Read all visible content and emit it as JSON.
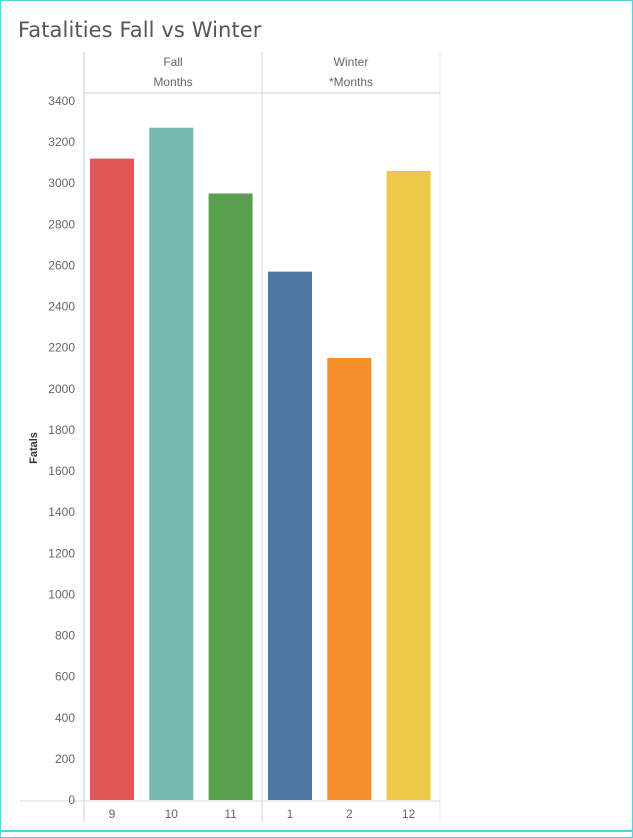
{
  "chart_data": {
    "type": "bar",
    "title": "Fatalities Fall vs Winter",
    "ylabel": "Fatals",
    "xlabel": "",
    "ylim": [
      0,
      3400
    ],
    "y_ticks": [
      0,
      200,
      400,
      600,
      800,
      1000,
      1200,
      1400,
      1600,
      1800,
      2000,
      2200,
      2400,
      2600,
      2800,
      3000,
      3200,
      3400
    ],
    "grid": false,
    "groups": [
      {
        "header": [
          "Fall",
          "Months"
        ],
        "categories": [
          "9",
          "10",
          "11"
        ],
        "values": [
          3120,
          3270,
          2950
        ],
        "colors": [
          "#e15759",
          "#76b7b2",
          "#59a14f"
        ]
      },
      {
        "header": [
          "Winter",
          "*Months"
        ],
        "categories": [
          "1",
          "2",
          "12"
        ],
        "values": [
          2570,
          2150,
          3060
        ],
        "colors": [
          "#4e79a7",
          "#f28e2b",
          "#edc948"
        ]
      }
    ]
  }
}
